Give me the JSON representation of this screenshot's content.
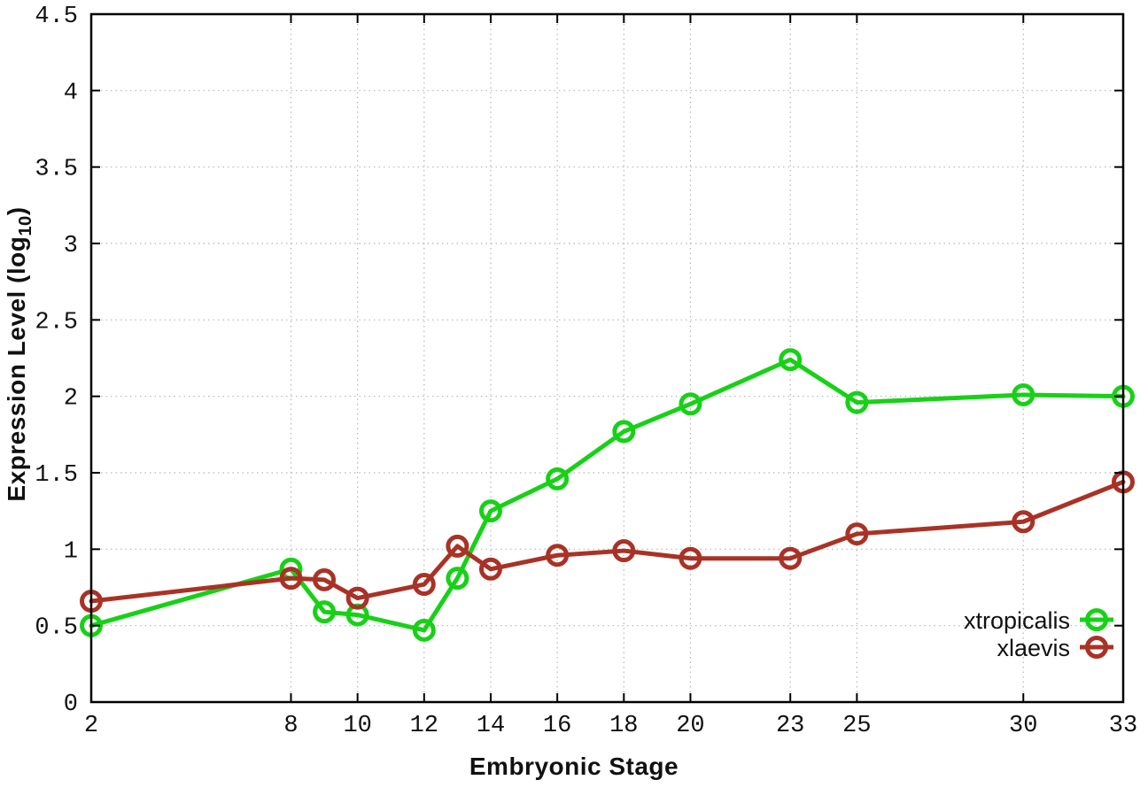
{
  "colors": {
    "background": "#ffffff",
    "grid": "#b5b5b5",
    "border": "#000000",
    "tick": "#000000",
    "text": "#111111",
    "series_green": "#17d117",
    "series_red": "#a93226"
  },
  "legend": {
    "position": "inside-bottom-right",
    "entries": [
      "xtropicalis",
      "xlaevis"
    ]
  },
  "chart_data": {
    "type": "line",
    "title": "",
    "xlabel": "Embryonic Stage",
    "ylabel": "Expression Level (log10)",
    "ylabel_parts": {
      "main": "Expression Level (log",
      "sub": "10",
      "close": ")"
    },
    "xlim": [
      2,
      33
    ],
    "ylim": [
      0,
      4.5
    ],
    "grid": true,
    "x": [
      2,
      8,
      9,
      10,
      12,
      13,
      14,
      16,
      18,
      20,
      23,
      25,
      30,
      33
    ],
    "xtick_values": [
      2,
      8,
      10,
      12,
      14,
      16,
      18,
      20,
      23,
      25,
      30,
      33
    ],
    "xticks": [
      "2",
      "8",
      "10",
      "12",
      "14",
      "16",
      "18",
      "20",
      "23",
      "25",
      "30",
      "33"
    ],
    "ytick_values": [
      0,
      0.5,
      1,
      1.5,
      2,
      2.5,
      3,
      3.5,
      4,
      4.5
    ],
    "yticks": [
      "0",
      "0.5",
      "1",
      "1.5",
      "2",
      "2.5",
      "3",
      "3.5",
      "4",
      "4.5"
    ],
    "series": [
      {
        "name": "xtropicalis",
        "color": "#17d117",
        "values": [
          0.5,
          0.87,
          0.59,
          0.57,
          0.47,
          0.81,
          1.25,
          1.46,
          1.77,
          1.95,
          2.24,
          1.96,
          2.01,
          2.0
        ]
      },
      {
        "name": "xlaevis",
        "color": "#a93226",
        "values": [
          0.66,
          0.81,
          0.8,
          0.68,
          0.77,
          1.02,
          0.87,
          0.96,
          0.99,
          0.94,
          0.94,
          1.1,
          1.18,
          1.44
        ]
      }
    ]
  }
}
